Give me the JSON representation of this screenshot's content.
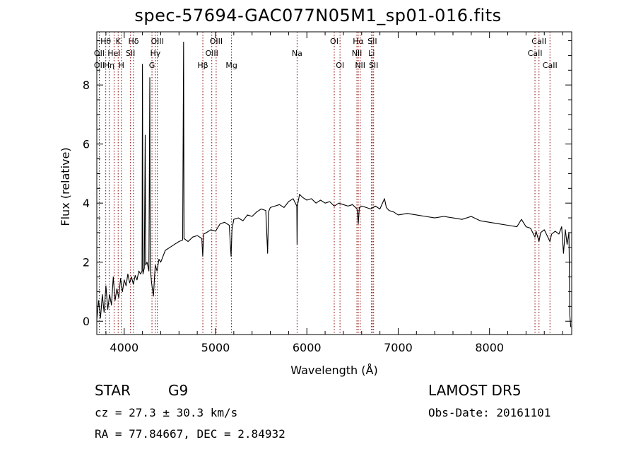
{
  "title": "spec-57694-GAC077N05M1_sp01-016.fits",
  "info": {
    "object_class": "STAR",
    "subclass": "G9",
    "survey": "LAMOST DR5",
    "cz": "cz = 27.3 ± 30.3 km/s",
    "obs_date": "Obs-Date: 20161101",
    "radec": "RA =  77.84667, DEC =   2.84932"
  },
  "colors": {
    "spectrum": "#000000",
    "line_markers": "#8b0000",
    "axes": "#000000"
  },
  "chart_data": {
    "type": "line",
    "xlabel": "Wavelength (Å)",
    "ylabel": "Flux (relative)",
    "xlim": [
      3700,
      8900
    ],
    "ylim": [
      -0.45,
      9.8
    ],
    "xticks": [
      4000,
      5000,
      6000,
      7000,
      8000
    ],
    "yticks": [
      0,
      2,
      4,
      6,
      8
    ],
    "grid": false,
    "series": [
      {
        "points": [
          [
            3700,
            0.05
          ],
          [
            3720,
            0.7
          ],
          [
            3740,
            0.1
          ],
          [
            3760,
            0.9
          ],
          [
            3780,
            0.3
          ],
          [
            3800,
            1.2
          ],
          [
            3820,
            0.4
          ],
          [
            3840,
            0.9
          ],
          [
            3860,
            0.55
          ],
          [
            3880,
            1.5
          ],
          [
            3900,
            0.7
          ],
          [
            3920,
            1.1
          ],
          [
            3940,
            0.8
          ],
          [
            3960,
            1.45
          ],
          [
            3980,
            1.0
          ],
          [
            4000,
            1.4
          ],
          [
            4020,
            1.2
          ],
          [
            4040,
            1.6
          ],
          [
            4060,
            1.3
          ],
          [
            4080,
            1.5
          ],
          [
            4100,
            1.25
          ],
          [
            4120,
            1.55
          ],
          [
            4140,
            1.4
          ],
          [
            4160,
            1.7
          ],
          [
            4180,
            1.6
          ],
          [
            4195,
            1.7
          ],
          [
            4200,
            8.7
          ],
          [
            4205,
            1.6
          ],
          [
            4220,
            1.8
          ],
          [
            4230,
            6.3
          ],
          [
            4235,
            1.9
          ],
          [
            4250,
            2.0
          ],
          [
            4270,
            1.7
          ],
          [
            4280,
            8.25
          ],
          [
            4285,
            1.8
          ],
          [
            4300,
            1.3
          ],
          [
            4320,
            0.85
          ],
          [
            4340,
            1.9
          ],
          [
            4360,
            1.7
          ],
          [
            4380,
            2.1
          ],
          [
            4400,
            2.0
          ],
          [
            4450,
            2.4
          ],
          [
            4500,
            2.5
          ],
          [
            4550,
            2.6
          ],
          [
            4600,
            2.7
          ],
          [
            4640,
            2.75
          ],
          [
            4650,
            9.45
          ],
          [
            4655,
            2.8
          ],
          [
            4700,
            2.7
          ],
          [
            4750,
            2.85
          ],
          [
            4800,
            2.9
          ],
          [
            4850,
            2.8
          ],
          [
            4860,
            2.2
          ],
          [
            4870,
            2.95
          ],
          [
            4900,
            3.0
          ],
          [
            4950,
            3.1
          ],
          [
            5000,
            3.05
          ],
          [
            5050,
            3.3
          ],
          [
            5100,
            3.35
          ],
          [
            5150,
            3.25
          ],
          [
            5170,
            2.2
          ],
          [
            5180,
            3.1
          ],
          [
            5200,
            3.45
          ],
          [
            5250,
            3.5
          ],
          [
            5300,
            3.4
          ],
          [
            5350,
            3.6
          ],
          [
            5400,
            3.55
          ],
          [
            5450,
            3.7
          ],
          [
            5500,
            3.8
          ],
          [
            5550,
            3.75
          ],
          [
            5570,
            2.3
          ],
          [
            5580,
            3.7
          ],
          [
            5600,
            3.85
          ],
          [
            5650,
            3.9
          ],
          [
            5700,
            3.95
          ],
          [
            5750,
            3.85
          ],
          [
            5800,
            4.05
          ],
          [
            5850,
            4.15
          ],
          [
            5890,
            3.9
          ],
          [
            5893,
            2.6
          ],
          [
            5896,
            3.9
          ],
          [
            5920,
            4.3
          ],
          [
            5950,
            4.2
          ],
          [
            6000,
            4.1
          ],
          [
            6050,
            4.15
          ],
          [
            6100,
            4.0
          ],
          [
            6150,
            4.1
          ],
          [
            6200,
            4.0
          ],
          [
            6250,
            4.05
          ],
          [
            6300,
            3.9
          ],
          [
            6350,
            4.0
          ],
          [
            6400,
            3.95
          ],
          [
            6450,
            3.9
          ],
          [
            6500,
            3.95
          ],
          [
            6550,
            3.8
          ],
          [
            6563,
            3.3
          ],
          [
            6575,
            3.85
          ],
          [
            6600,
            3.9
          ],
          [
            6650,
            3.85
          ],
          [
            6700,
            3.8
          ],
          [
            6750,
            3.9
          ],
          [
            6800,
            3.8
          ],
          [
            6850,
            4.15
          ],
          [
            6870,
            3.85
          ],
          [
            6900,
            3.75
          ],
          [
            6950,
            3.7
          ],
          [
            7000,
            3.6
          ],
          [
            7100,
            3.65
          ],
          [
            7200,
            3.6
          ],
          [
            7300,
            3.55
          ],
          [
            7400,
            3.5
          ],
          [
            7500,
            3.55
          ],
          [
            7600,
            3.5
          ],
          [
            7700,
            3.45
          ],
          [
            7800,
            3.55
          ],
          [
            7900,
            3.4
          ],
          [
            8000,
            3.35
          ],
          [
            8100,
            3.3
          ],
          [
            8200,
            3.25
          ],
          [
            8300,
            3.2
          ],
          [
            8350,
            3.45
          ],
          [
            8400,
            3.2
          ],
          [
            8450,
            3.15
          ],
          [
            8498,
            2.85
          ],
          [
            8510,
            3.05
          ],
          [
            8542,
            2.7
          ],
          [
            8560,
            3.0
          ],
          [
            8600,
            3.1
          ],
          [
            8662,
            2.7
          ],
          [
            8680,
            2.95
          ],
          [
            8720,
            3.05
          ],
          [
            8760,
            2.95
          ],
          [
            8790,
            3.2
          ],
          [
            8810,
            2.3
          ],
          [
            8830,
            3.1
          ],
          [
            8850,
            2.6
          ],
          [
            8870,
            3.0
          ],
          [
            8880,
            0.2
          ],
          [
            8890,
            -0.2
          ]
        ]
      }
    ],
    "line_markers": [
      {
        "label": "Hθ",
        "x": 3798,
        "row": 0
      },
      {
        "label": "OII",
        "x": 3727,
        "row": 1
      },
      {
        "label": "OII",
        "x": 3727,
        "row": 2
      },
      {
        "label": "K",
        "x": 3934,
        "row": 0
      },
      {
        "label": "HeI",
        "x": 3889,
        "row": 1
      },
      {
        "label": "Hη",
        "x": 3835,
        "row": 2
      },
      {
        "label": "H",
        "x": 3969,
        "row": 2
      },
      {
        "label": "Hδ",
        "x": 4102,
        "row": 0
      },
      {
        "label": "SII",
        "x": 4069,
        "row": 1
      },
      {
        "label": "OIII",
        "x": 4363,
        "row": 0
      },
      {
        "label": "Hγ",
        "x": 4341,
        "row": 1
      },
      {
        "label": "G",
        "x": 4304,
        "row": 2
      },
      {
        "label": "Hβ",
        "x": 4861,
        "row": 2
      },
      {
        "label": "OIII",
        "x": 5007,
        "row": 0
      },
      {
        "label": "OIII",
        "x": 4959,
        "row": 1
      },
      {
        "label": "Mg",
        "x": 5175,
        "row": 2
      },
      {
        "label": "Na",
        "x": 5893,
        "row": 1
      },
      {
        "label": "OI",
        "x": 6300,
        "row": 0
      },
      {
        "label": "OI",
        "x": 6363,
        "row": 2
      },
      {
        "label": "Hα",
        "x": 6563,
        "row": 0
      },
      {
        "label": "NII",
        "x": 6548,
        "row": 1
      },
      {
        "label": "NII",
        "x": 6584,
        "row": 2
      },
      {
        "label": "SII",
        "x": 6717,
        "row": 0
      },
      {
        "label": "Li",
        "x": 6708,
        "row": 1
      },
      {
        "label": "SII",
        "x": 6731,
        "row": 2
      },
      {
        "label": "CaII",
        "x": 8542,
        "row": 0
      },
      {
        "label": "CaII",
        "x": 8498,
        "row": 1
      },
      {
        "label": "CaII",
        "x": 8662,
        "row": 2
      }
    ]
  }
}
